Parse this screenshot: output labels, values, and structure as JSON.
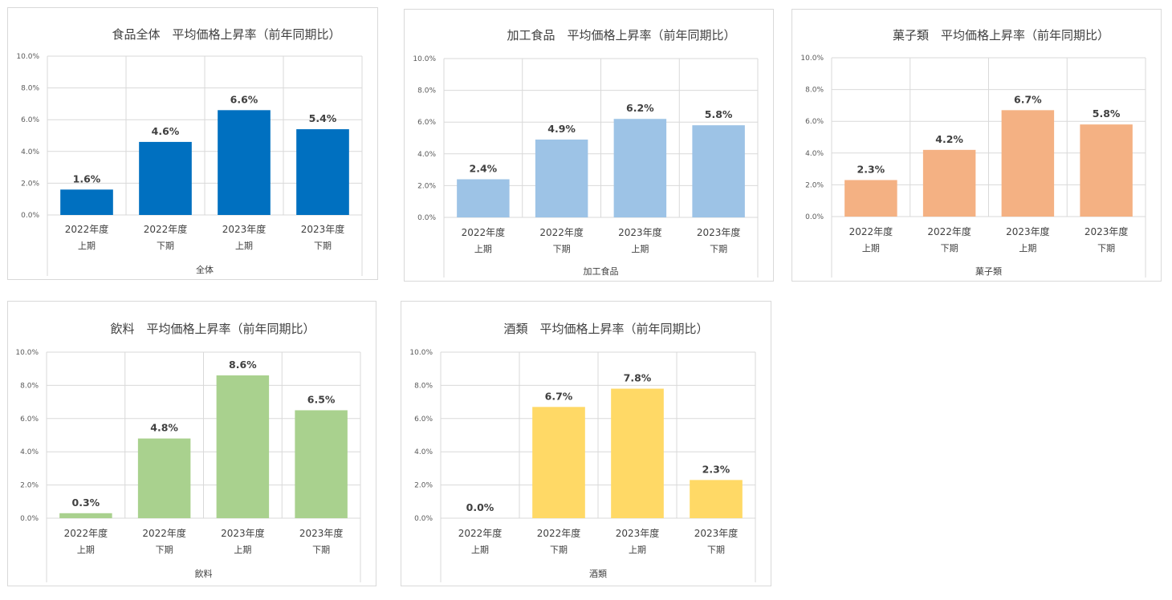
{
  "chart_data": [
    {
      "type": "bar",
      "title": "食品全体　平均価格上昇率（前年同期比）",
      "categories": [
        [
          "2022年度",
          "上期"
        ],
        [
          "2022年度",
          "下期"
        ],
        [
          "2023年度",
          "上期"
        ],
        [
          "2023年度",
          "下期"
        ]
      ],
      "values": [
        1.6,
        4.6,
        6.6,
        5.4
      ],
      "value_labels": [
        "1.6%",
        "4.6%",
        "6.6%",
        "5.4%"
      ],
      "xlabel": "全体",
      "ylim": [
        0,
        10
      ],
      "yticks": [
        "0.0%",
        "2.0%",
        "4.0%",
        "6.0%",
        "8.0%",
        "10.0%"
      ],
      "color": "#0070C0",
      "grid": true
    },
    {
      "type": "bar",
      "title": "加工食品　平均価格上昇率（前年同期比）",
      "categories": [
        [
          "2022年度",
          "上期"
        ],
        [
          "2022年度",
          "下期"
        ],
        [
          "2023年度",
          "上期"
        ],
        [
          "2023年度",
          "下期"
        ]
      ],
      "values": [
        2.4,
        4.9,
        6.2,
        5.8
      ],
      "value_labels": [
        "2.4%",
        "4.9%",
        "6.2%",
        "5.8%"
      ],
      "xlabel": "加工食品",
      "ylim": [
        0,
        10
      ],
      "yticks": [
        "0.0%",
        "2.0%",
        "4.0%",
        "6.0%",
        "8.0%",
        "10.0%"
      ],
      "color": "#9DC3E6",
      "grid": true
    },
    {
      "type": "bar",
      "title": "菓子類　平均価格上昇率（前年同期比）",
      "categories": [
        [
          "2022年度",
          "上期"
        ],
        [
          "2022年度",
          "下期"
        ],
        [
          "2023年度",
          "上期"
        ],
        [
          "2023年度",
          "下期"
        ]
      ],
      "values": [
        2.3,
        4.2,
        6.7,
        5.8
      ],
      "value_labels": [
        "2.3%",
        "4.2%",
        "6.7%",
        "5.8%"
      ],
      "xlabel": "菓子類",
      "ylim": [
        0,
        10
      ],
      "yticks": [
        "0.0%",
        "2.0%",
        "4.0%",
        "6.0%",
        "8.0%",
        "10.0%"
      ],
      "color": "#F4B183",
      "grid": true
    },
    {
      "type": "bar",
      "title": "飲料　平均価格上昇率（前年同期比）",
      "categories": [
        [
          "2022年度",
          "上期"
        ],
        [
          "2022年度",
          "下期"
        ],
        [
          "2023年度",
          "上期"
        ],
        [
          "2023年度",
          "下期"
        ]
      ],
      "values": [
        0.3,
        4.8,
        8.6,
        6.5
      ],
      "value_labels": [
        "0.3%",
        "4.8%",
        "8.6%",
        "6.5%"
      ],
      "xlabel": "飲料",
      "ylim": [
        0,
        10
      ],
      "yticks": [
        "0.0%",
        "2.0%",
        "4.0%",
        "6.0%",
        "8.0%",
        "10.0%"
      ],
      "color": "#A9D18E",
      "grid": true
    },
    {
      "type": "bar",
      "title": "酒類　平均価格上昇率（前年同期比）",
      "categories": [
        [
          "2022年度",
          "上期"
        ],
        [
          "2022年度",
          "下期"
        ],
        [
          "2023年度",
          "上期"
        ],
        [
          "2023年度",
          "下期"
        ]
      ],
      "values": [
        0.0,
        6.7,
        7.8,
        2.3
      ],
      "value_labels": [
        "0.0%",
        "6.7%",
        "7.8%",
        "2.3%"
      ],
      "xlabel": "酒類",
      "ylim": [
        0,
        10
      ],
      "yticks": [
        "0.0%",
        "2.0%",
        "4.0%",
        "6.0%",
        "8.0%",
        "10.0%"
      ],
      "color": "#FFD966",
      "grid": true
    }
  ]
}
